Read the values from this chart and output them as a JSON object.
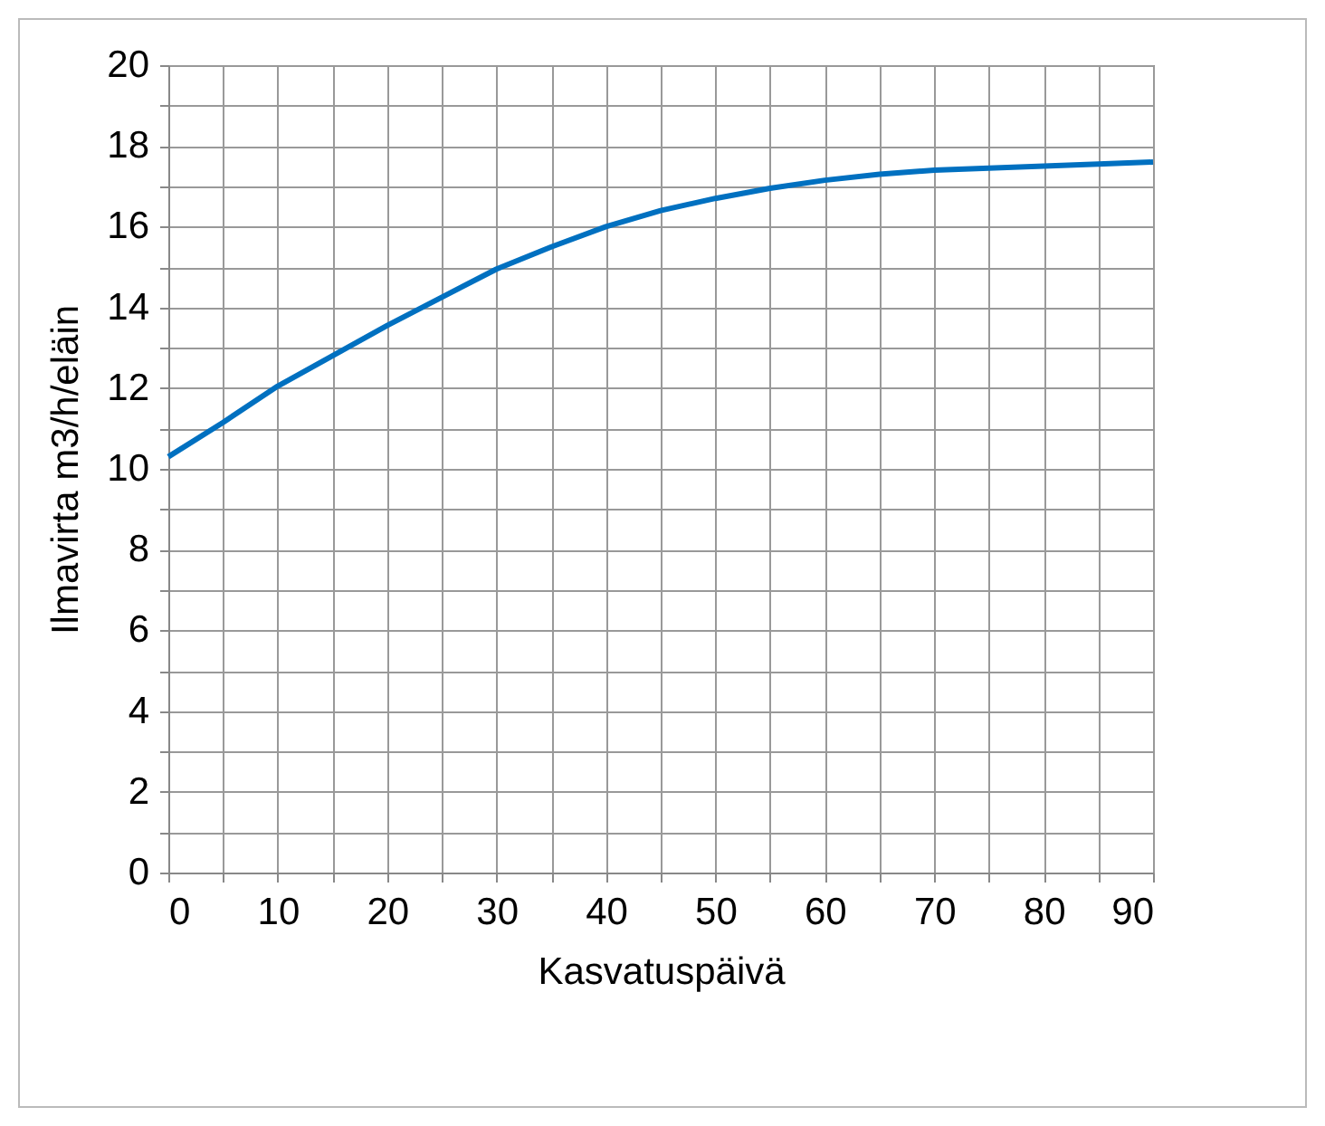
{
  "chart_data": {
    "type": "line",
    "xlabel": "Kasvatuspäivä",
    "ylabel": "Ilmavirta m3/h/eläin",
    "x": [
      0,
      5,
      10,
      15,
      20,
      25,
      30,
      35,
      40,
      45,
      50,
      55,
      60,
      65,
      70,
      75,
      80,
      85,
      90
    ],
    "series": [
      {
        "color": "#0070c0",
        "values": [
          10.3,
          11.15,
          12.05,
          12.8,
          13.55,
          14.25,
          14.95,
          15.5,
          16.0,
          16.4,
          16.7,
          16.95,
          17.15,
          17.3,
          17.4,
          17.45,
          17.5,
          17.55,
          17.6
        ]
      }
    ],
    "xlim": [
      0,
      90
    ],
    "ylim": [
      0,
      20
    ],
    "xticks": [
      0,
      {
        "value": 5,
        "label": null
      },
      10,
      {
        "value": 15,
        "label": null
      },
      20,
      {
        "value": 25,
        "label": null
      },
      30,
      {
        "value": 35,
        "label": null
      },
      40,
      {
        "value": 45,
        "label": null
      },
      50,
      {
        "value": 55,
        "label": null
      },
      60,
      {
        "value": 65,
        "label": null
      },
      70,
      {
        "value": 75,
        "label": null
      },
      80,
      {
        "value": 85,
        "label": null
      },
      90
    ],
    "yticks": [
      0,
      {
        "value": 1,
        "label": null
      },
      2,
      {
        "value": 3,
        "label": null
      },
      4,
      {
        "value": 5,
        "label": null
      },
      6,
      {
        "value": 7,
        "label": null
      },
      8,
      {
        "value": 9,
        "label": null
      },
      10,
      {
        "value": 11,
        "label": null
      },
      12,
      {
        "value": 13,
        "label": null
      },
      14,
      {
        "value": 15,
        "label": null
      },
      16,
      {
        "value": 17,
        "label": null
      },
      18,
      {
        "value": 19,
        "label": null
      },
      20
    ],
    "grid": true,
    "marker": "none",
    "line_style": "solid"
  }
}
